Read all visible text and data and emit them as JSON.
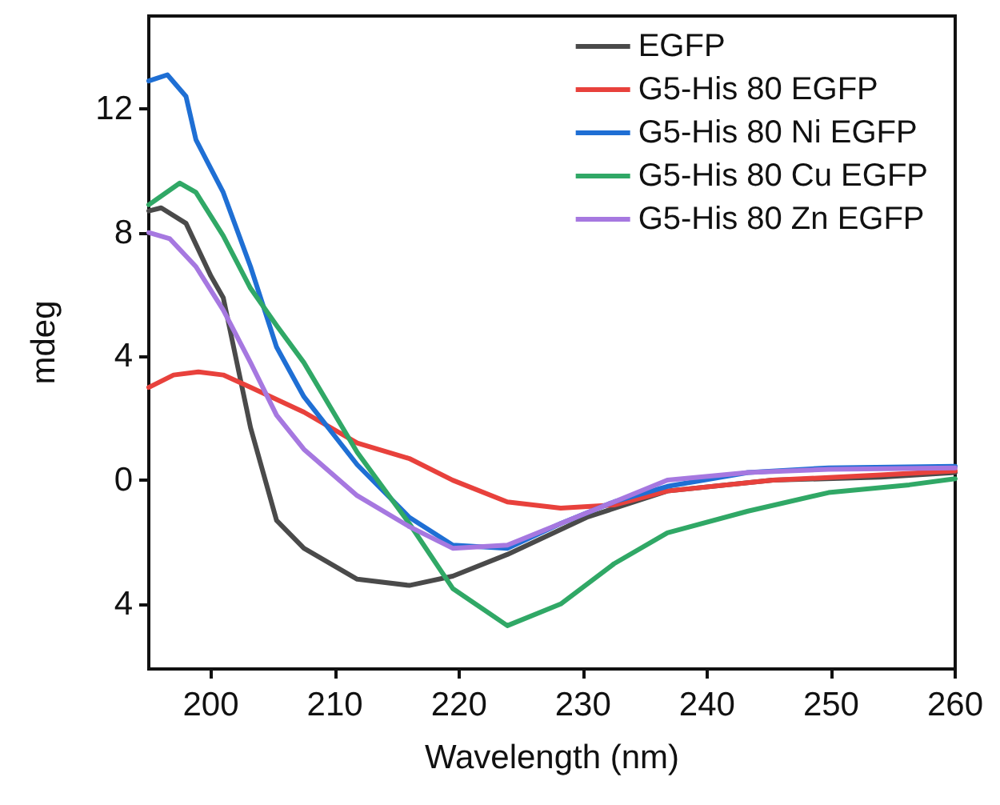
{
  "chart_data": {
    "type": "line",
    "xlabel": "Wavelength (nm)",
    "ylabel": "mdeg",
    "xlim": [
      195,
      260
    ],
    "xticks": [
      200,
      210,
      220,
      230,
      240,
      250,
      260
    ],
    "ylim": [
      -6.1,
      15
    ],
    "yticks": [
      {
        "value": -4,
        "label": "4"
      },
      0,
      4,
      8,
      12
    ],
    "grid": false,
    "legend": "top right",
    "marker": "none",
    "line_style": "solid",
    "series": [
      {
        "name": "EGFP",
        "color": "#4a4a4a",
        "x": [
          195,
          196,
          198,
          200,
          201,
          203.2,
          205.3,
          207.5,
          211.8,
          216,
          219.5,
          223.9,
          230.3,
          236.8,
          245.3,
          254,
          260
        ],
        "values": [
          8.7,
          8.8,
          8.3,
          6.6,
          5.9,
          1.7,
          -1.3,
          -2.2,
          -3.2,
          -3.4,
          -3.1,
          -2.4,
          -1.2,
          -0.35,
          0.0,
          0.1,
          0.25
        ]
      },
      {
        "name": "G5-His 80 EGFP",
        "color": "#e8413c",
        "x": [
          195,
          197,
          199,
          201,
          203.2,
          207.5,
          211.8,
          216,
          219.5,
          223.9,
          228.2,
          232.5,
          236.8,
          245.3,
          254,
          260
        ],
        "values": [
          3.0,
          3.4,
          3.5,
          3.4,
          3.0,
          2.2,
          1.2,
          0.7,
          0.0,
          -0.7,
          -0.9,
          -0.8,
          -0.35,
          0.0,
          0.17,
          0.3
        ]
      },
      {
        "name": "G5-His 80 Ni EGFP",
        "color": "#1f6fd4",
        "x": [
          195,
          196.5,
          198,
          198.8,
          201,
          203.2,
          205.3,
          207.5,
          211.8,
          216,
          219.5,
          223.9,
          228.2,
          232.5,
          236.8,
          243.3,
          249.8,
          260
        ],
        "values": [
          12.9,
          13.1,
          12.4,
          11.0,
          9.3,
          6.9,
          4.3,
          2.7,
          0.5,
          -1.2,
          -2.1,
          -2.2,
          -1.4,
          -0.7,
          -0.2,
          0.25,
          0.4,
          0.45
        ]
      },
      {
        "name": "G5-His 80 Cu EGFP",
        "color": "#30a866",
        "x": [
          195,
          197.5,
          198.8,
          201,
          203.2,
          205.3,
          207.5,
          211.8,
          216,
          219.5,
          223.9,
          228.2,
          232.5,
          236.8,
          243.3,
          249.8,
          256.3,
          260
        ],
        "values": [
          8.9,
          9.6,
          9.3,
          7.9,
          6.2,
          5.0,
          3.8,
          0.9,
          -1.4,
          -3.5,
          -4.7,
          -4.0,
          -2.7,
          -1.7,
          -1.0,
          -0.4,
          -0.15,
          0.05
        ]
      },
      {
        "name": "G5-His 80 Zn EGFP",
        "color": "#a678e0",
        "x": [
          195,
          196.7,
          198.8,
          201,
          203.2,
          205.3,
          207.5,
          211.8,
          216,
          219.5,
          223.9,
          228.2,
          232.5,
          236.8,
          243.3,
          249.8,
          260
        ],
        "values": [
          8.0,
          7.8,
          6.9,
          5.5,
          3.8,
          2.1,
          1.0,
          -0.5,
          -1.5,
          -2.2,
          -2.1,
          -1.4,
          -0.7,
          0.0,
          0.25,
          0.35,
          0.4
        ]
      }
    ]
  }
}
